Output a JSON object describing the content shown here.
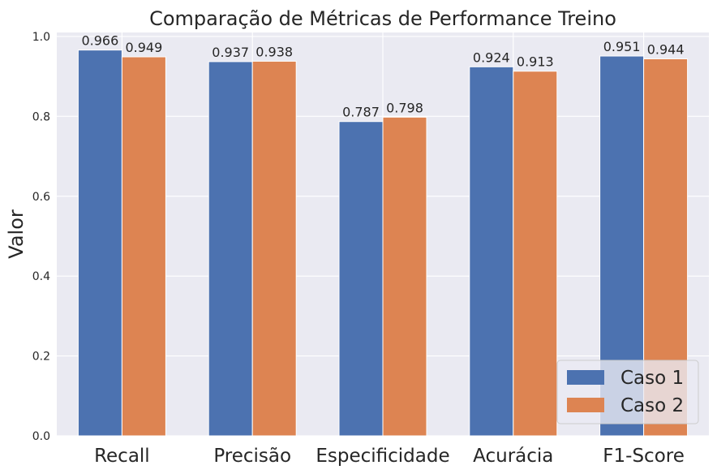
{
  "chart_data": {
    "type": "bar",
    "title": "Comparação de Métricas de Performance Treino",
    "xlabel": "",
    "ylabel": "Valor",
    "ylim": [
      0,
      1.0
    ],
    "yticks": [
      "0.0",
      "0.2",
      "0.4",
      "0.6",
      "0.8",
      "1.0"
    ],
    "ytick_values": [
      0.0,
      0.2,
      0.4,
      0.6,
      0.8,
      1.0
    ],
    "grid": true,
    "legend_position": "bottom-right",
    "categories": [
      "Recall",
      "Precisão",
      "Especificidade",
      "Acurácia",
      "F1-Score"
    ],
    "series": [
      {
        "name": "Caso 1",
        "color": "#4c72b0",
        "values": [
          0.966,
          0.937,
          0.787,
          0.924,
          0.951
        ],
        "labels": [
          "0.966",
          "0.937",
          "0.787",
          "0.924",
          "0.951"
        ]
      },
      {
        "name": "Caso 2",
        "color": "#dd8452",
        "values": [
          0.949,
          0.938,
          0.798,
          0.913,
          0.944
        ],
        "labels": [
          "0.949",
          "0.938",
          "0.798",
          "0.913",
          "0.944"
        ]
      }
    ],
    "background_color": "#eaeaf2",
    "grid_color": "#ffffff"
  }
}
